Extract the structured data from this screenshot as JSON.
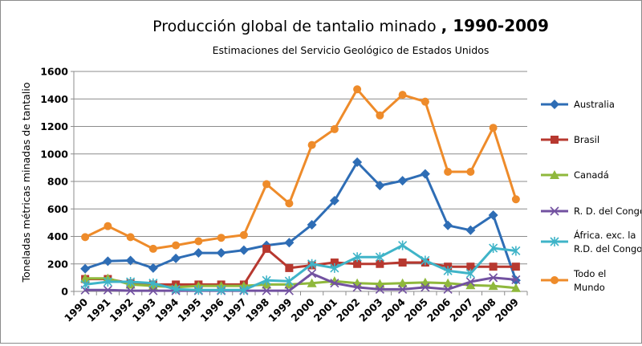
{
  "chart_data": {
    "type": "line",
    "title": "Producción global de tantalio minado",
    "title_suffix": ", 1990-2009",
    "subtitle": "Estimaciones del Servicio Geológico de Estados Unidos",
    "xlabel": "",
    "ylabel": "Toneladas métricas minadas de tantalio",
    "categories": [
      "1990",
      "1991",
      "1992",
      "1993",
      "1994",
      "1995",
      "1996",
      "1997",
      "1998",
      "1999",
      "2000",
      "2001",
      "2002",
      "2003",
      "2004",
      "2005",
      "2006",
      "2007",
      "2008",
      "2009"
    ],
    "ylim": [
      0,
      1600
    ],
    "yticks": [
      0,
      200,
      400,
      600,
      800,
      1000,
      1200,
      1400,
      1600
    ],
    "grid": true,
    "legend_position": "right",
    "series": [
      {
        "name": "Australia",
        "color": "#2e6db5",
        "marker": "diamond",
        "values": [
          165,
          220,
          225,
          170,
          240,
          280,
          280,
          300,
          335,
          355,
          485,
          660,
          940,
          770,
          805,
          855,
          480,
          445,
          555,
          80
        ]
      },
      {
        "name": "Brasil",
        "color": "#b7382f",
        "marker": "square",
        "values": [
          90,
          90,
          60,
          50,
          50,
          50,
          50,
          50,
          310,
          170,
          190,
          210,
          200,
          200,
          210,
          210,
          180,
          180,
          180,
          180
        ]
      },
      {
        "name": "Canadá",
        "color": "#8fb83c",
        "marker": "triangle",
        "values": [
          95,
          95,
          50,
          40,
          30,
          40,
          40,
          40,
          50,
          50,
          60,
          75,
          60,
          55,
          60,
          65,
          60,
          45,
          40,
          25
        ]
      },
      {
        "name": "R. D. del Congo",
        "color": "#7251a0",
        "marker": "x",
        "values": [
          10,
          10,
          5,
          5,
          5,
          5,
          5,
          5,
          5,
          5,
          130,
          60,
          30,
          15,
          15,
          30,
          15,
          70,
          100,
          85
        ]
      },
      {
        "name": "África. exc. la R.D. del Congo",
        "color": "#3fb4c8",
        "marker": "star",
        "values": [
          50,
          70,
          70,
          60,
          15,
          10,
          10,
          10,
          80,
          75,
          200,
          170,
          250,
          250,
          335,
          225,
          150,
          130,
          315,
          295
        ]
      },
      {
        "name": "Todo el Mundo",
        "color": "#ee8b2a",
        "marker": "circle",
        "values": [
          395,
          475,
          395,
          310,
          335,
          365,
          390,
          410,
          780,
          640,
          1065,
          1180,
          1470,
          1280,
          1430,
          1380,
          870,
          870,
          1190,
          670
        ]
      }
    ],
    "legend_labels": [
      [
        "Australia"
      ],
      [
        "Brasil"
      ],
      [
        "Canadá"
      ],
      [
        "R. D. del Congo"
      ],
      [
        "África. exc. la",
        "R.D. del Congo"
      ],
      [
        "Todo el",
        "Mundo"
      ]
    ]
  }
}
